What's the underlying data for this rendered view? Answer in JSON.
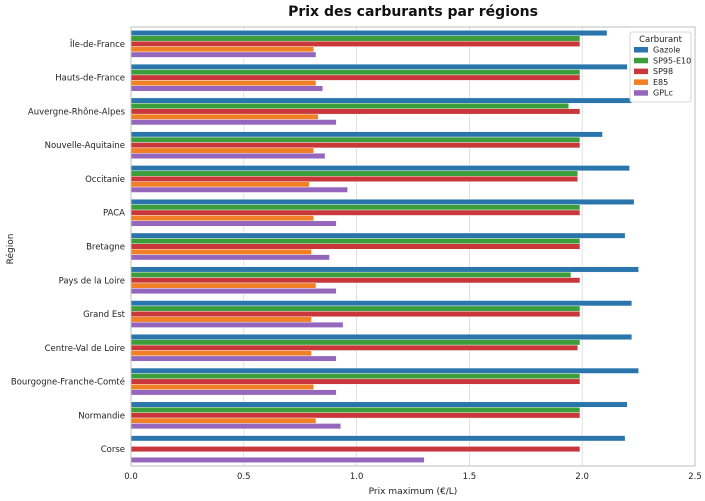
{
  "chart_data": {
    "type": "bar",
    "orientation": "horizontal",
    "title": "Prix des carburants par régions",
    "xlabel": "Prix maximum (€/L)",
    "ylabel": "Région",
    "xlim": [
      0,
      2.5
    ],
    "xticks": [
      "0.0",
      "0.5",
      "1.0",
      "1.5",
      "2.0",
      "2.5"
    ],
    "grid": true,
    "legend_title": "Carburant",
    "legend_position": "top-right",
    "categories": [
      "Île-de-France",
      "Hauts-de-France",
      "Auvergne-Rhône-Alpes",
      "Nouvelle-Aquitaine",
      "Occitanie",
      "PACA",
      "Bretagne",
      "Pays de la Loire",
      "Grand Est",
      "Centre-Val de Loire",
      "Bourgogne-Franche-Comté",
      "Normandie",
      "Corse"
    ],
    "series": [
      {
        "name": "Gazole",
        "color": "#2a76ac",
        "values": [
          2.11,
          2.2,
          2.22,
          2.09,
          2.21,
          2.23,
          2.19,
          2.25,
          2.22,
          2.22,
          2.25,
          2.2,
          2.19
        ]
      },
      {
        "name": "SP95-E10",
        "color": "#3b9e3b",
        "values": [
          1.99,
          1.99,
          1.94,
          1.99,
          1.98,
          1.99,
          1.99,
          1.95,
          1.99,
          1.99,
          1.99,
          1.99,
          null
        ]
      },
      {
        "name": "SP98",
        "color": "#c9373a",
        "values": [
          1.99,
          1.99,
          1.99,
          1.99,
          1.98,
          1.99,
          1.99,
          1.99,
          1.99,
          1.98,
          1.99,
          1.99,
          1.99
        ]
      },
      {
        "name": "E85",
        "color": "#f07f26",
        "values": [
          0.81,
          0.82,
          0.83,
          0.81,
          0.79,
          0.81,
          0.8,
          0.82,
          0.8,
          0.8,
          0.81,
          0.82,
          null
        ]
      },
      {
        "name": "GPLc",
        "color": "#9467bd",
        "values": [
          0.82,
          0.85,
          0.91,
          0.86,
          0.96,
          0.91,
          0.88,
          0.91,
          0.94,
          0.91,
          0.91,
          0.93,
          1.3
        ]
      }
    ]
  }
}
